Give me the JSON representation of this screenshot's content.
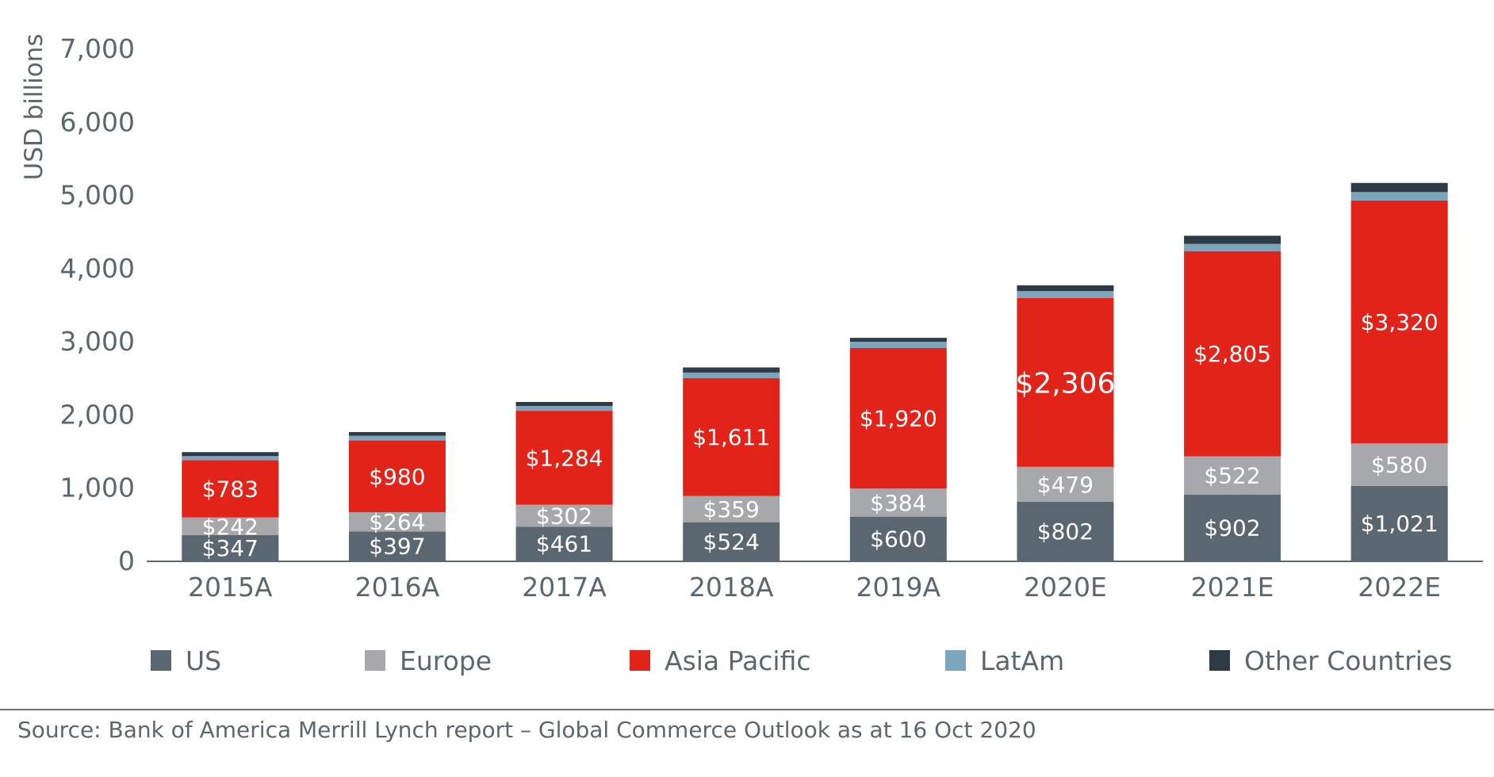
{
  "chart_data": {
    "type": "bar",
    "stacked": true,
    "ylabel": "USD billions",
    "ylim": [
      0,
      7000
    ],
    "yticks": [
      0,
      1000,
      2000,
      3000,
      4000,
      5000,
      6000,
      7000
    ],
    "ytick_labels": [
      "0",
      "1,000",
      "2,000",
      "3,000",
      "4,000",
      "5,000",
      "6,000",
      "7,000"
    ],
    "categories": [
      "2015A",
      "2016A",
      "2017A",
      "2018A",
      "2019A",
      "2020E",
      "2021E",
      "2022E"
    ],
    "series": [
      {
        "name": "US",
        "color": "#5b6770",
        "values": [
          347,
          397,
          461,
          524,
          600,
          802,
          902,
          1021
        ],
        "labels": [
          "$347",
          "$397",
          "$461",
          "$524",
          "$600",
          "$802",
          "$902",
          "$1,021"
        ]
      },
      {
        "name": "Europe",
        "color": "#a6a8ab",
        "values": [
          242,
          264,
          302,
          359,
          384,
          479,
          522,
          580
        ],
        "labels": [
          "$242",
          "$264",
          "$302",
          "$359",
          "$384",
          "$479",
          "$522",
          "$580"
        ]
      },
      {
        "name": "Asia Pacific",
        "color": "#e2231a",
        "values": [
          783,
          980,
          1284,
          1611,
          1920,
          2306,
          2805,
          3320
        ],
        "labels": [
          "$783",
          "$980",
          "$1,284",
          "$1,611",
          "$1,920",
          "$2,306",
          "$2,805",
          "$3,320"
        ]
      },
      {
        "name": "LatAm",
        "color": "#7ba4bd",
        "values": [
          55,
          65,
          65,
          75,
          85,
          95,
          100,
          115
        ],
        "labels": []
      },
      {
        "name": "Other Countries",
        "color": "#2e3a44",
        "values": [
          55,
          50,
          55,
          70,
          55,
          80,
          110,
          125
        ],
        "labels": []
      }
    ],
    "legend_position": "bottom",
    "grid": false,
    "axis_color": "#5b6770",
    "label_color": "#ffffff"
  },
  "source": "Source: Bank of America Merrill Lynch report – Global Commerce Outlook as at 16 Oct 2020"
}
